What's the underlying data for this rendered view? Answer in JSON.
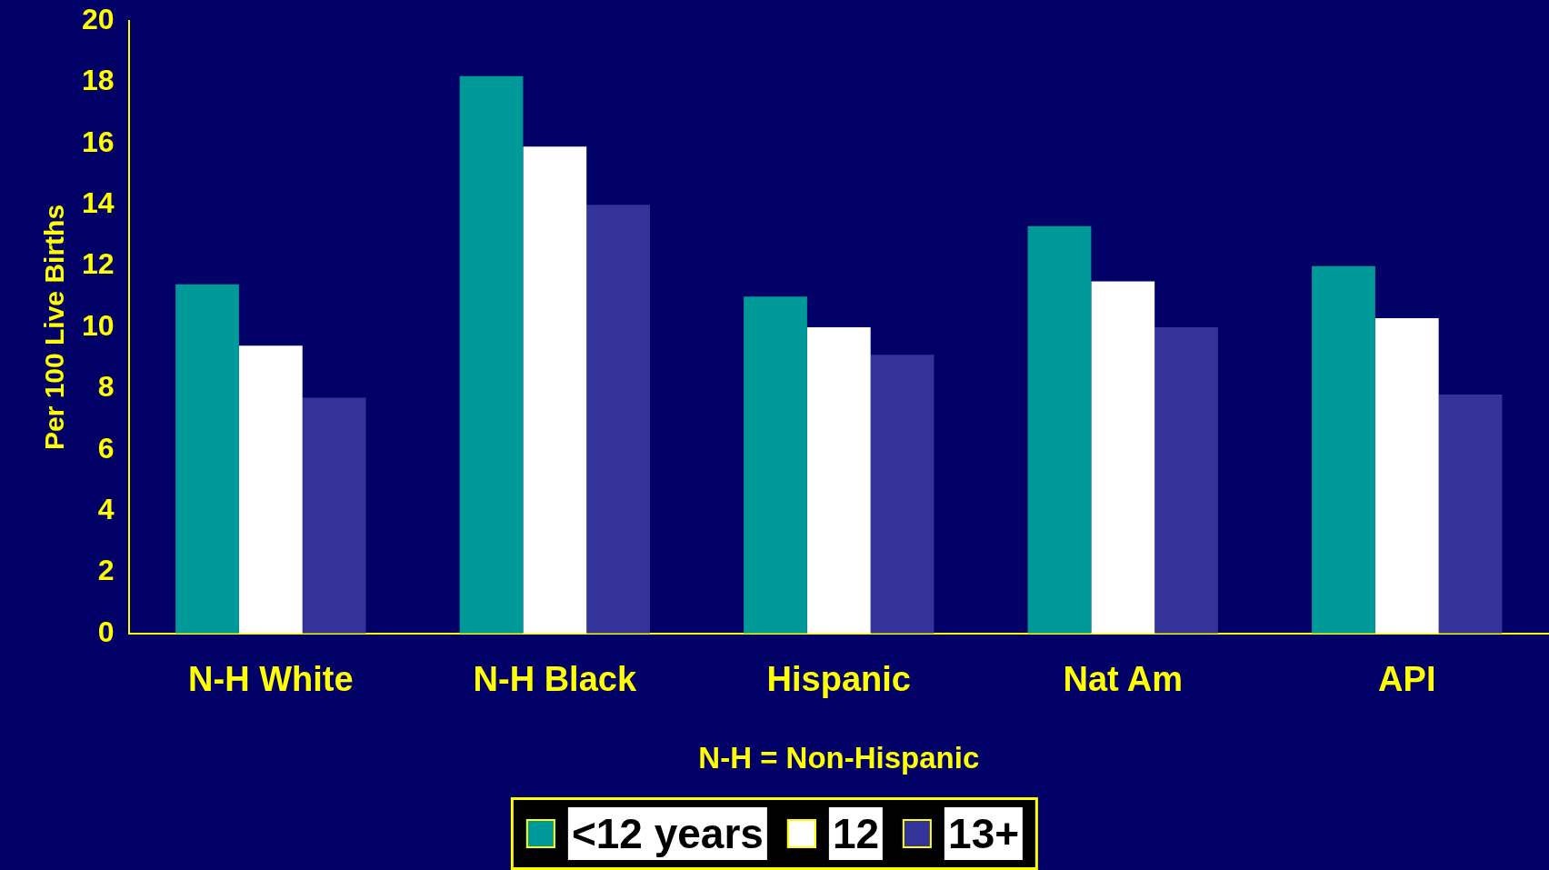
{
  "chart_data": {
    "type": "bar",
    "xlabel": "N-H = Non-Hispanic",
    "ylabel": "Per 100 Live Births",
    "categories": [
      "N-H White",
      "N-H Black",
      "Hispanic",
      "Nat Am",
      "API"
    ],
    "series": [
      {
        "name": "<12 years",
        "color": "#009999",
        "values": [
          11.4,
          18.2,
          11.0,
          13.3,
          12.0
        ]
      },
      {
        "name": "12",
        "color": "#ffffff",
        "values": [
          9.4,
          15.9,
          10.0,
          11.5,
          10.3
        ]
      },
      {
        "name": "13+",
        "color": "#333399",
        "values": [
          7.7,
          14.0,
          9.1,
          10.0,
          7.8
        ]
      }
    ],
    "ylim": [
      0,
      20
    ],
    "yticks": [
      0,
      2,
      4,
      6,
      8,
      10,
      12,
      14,
      16,
      18,
      20
    ],
    "grid": false,
    "legend": "bottom"
  }
}
